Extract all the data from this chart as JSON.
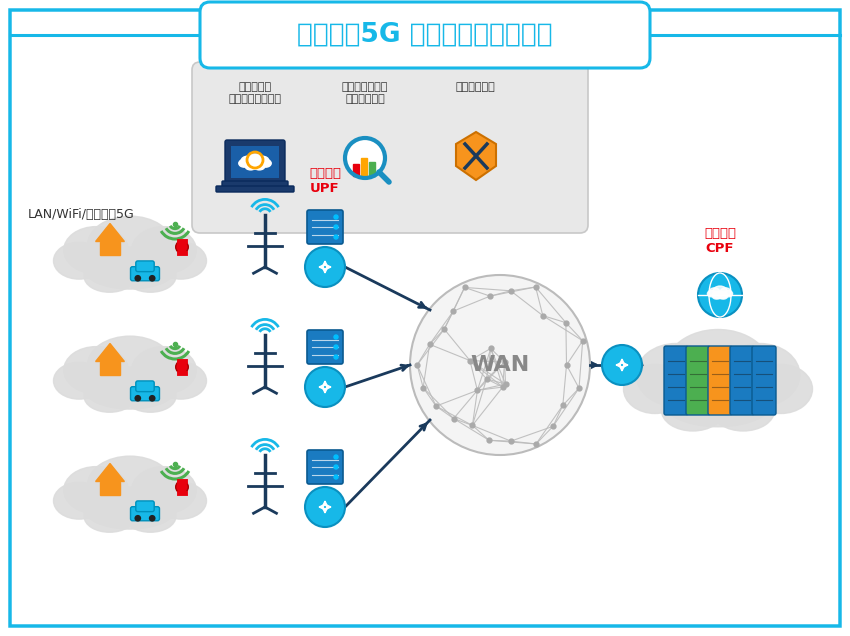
{
  "title": "ローカル5G レファレンスモデル",
  "title_color": "#17B8E8",
  "bg_color": "#FFFFFF",
  "outer_border_color": "#17B8E8",
  "label_lan": "LAN/WiFi/ローカル5G",
  "label_mobile_upf": "モバイル\nUPF",
  "label_mobile_cpf": "モバイル\nCPF",
  "label_wan": "WAN",
  "label_upf_color": "#E8000D",
  "label_cpf_color": "#E8000D",
  "top_box_labels": [
    "統合管理・\nプロビジョニング",
    "パフォーマンス\nモニタリング",
    "セキュリティ"
  ],
  "top_box_bg": "#E8E8E8",
  "cloud_color": "#DCDCDC",
  "cyan_color": "#17B8E8",
  "dark_blue": "#1A3A5C",
  "orange_color": "#F7941D",
  "green_color": "#4CAF50",
  "router_blue": "#1A8FC1",
  "server_blue": "#1A7BC1"
}
